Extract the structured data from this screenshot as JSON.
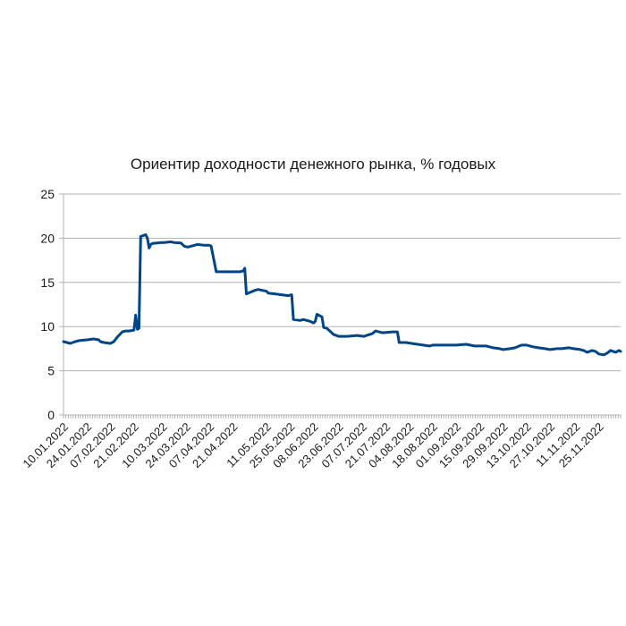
{
  "chart_data": {
    "type": "line",
    "title": "Ориентир доходности денежного рынка, % годовых",
    "xlabel": "",
    "ylabel": "",
    "ylim": [
      0,
      25
    ],
    "yticks": [
      "0",
      "5",
      "10",
      "15",
      "20",
      "25"
    ],
    "grid": "horizontal",
    "legend": "none",
    "line_color": "#004586",
    "x_tick_labels": [
      "10.01.2022",
      "24.01.2022",
      "07.02.2022",
      "21.02.2022",
      "10.03.2022",
      "24.03.2022",
      "07.04.2022",
      "21.04.2022",
      "11.05.2022",
      "25.05.2022",
      "08.06.2022",
      "23.06.2022",
      "07.07.2022",
      "21.07.2022",
      "04.08.2022",
      "18.08.2022",
      "01.09.2022",
      "15.09.2022",
      "29.09.2022",
      "13.10.2022",
      "27.10.2022",
      "11.11.2022",
      "25.11.2022"
    ],
    "points": [
      [
        "10.01.2022",
        8.3
      ],
      [
        "12.01.2022",
        8.2
      ],
      [
        "14.01.2022",
        8.1
      ],
      [
        "17.01.2022",
        8.3
      ],
      [
        "19.01.2022",
        8.4
      ],
      [
        "21.01.2022",
        8.45
      ],
      [
        "24.01.2022",
        8.5
      ],
      [
        "26.01.2022",
        8.55
      ],
      [
        "28.01.2022",
        8.6
      ],
      [
        "31.01.2022",
        8.5
      ],
      [
        "01.02.2022",
        8.3
      ],
      [
        "03.02.2022",
        8.2
      ],
      [
        "07.02.2022",
        8.1
      ],
      [
        "09.02.2022",
        8.3
      ],
      [
        "11.02.2022",
        8.8
      ],
      [
        "14.02.2022",
        9.4
      ],
      [
        "16.02.2022",
        9.5
      ],
      [
        "18.02.2022",
        9.5
      ],
      [
        "21.02.2022",
        9.6
      ],
      [
        "22.02.2022",
        11.3
      ],
      [
        "23.02.2022",
        9.7
      ],
      [
        "24.02.2022",
        9.8
      ],
      [
        "25.02.2022",
        20.2
      ],
      [
        "28.02.2022",
        20.4
      ],
      [
        "01.03.2022",
        20.0
      ],
      [
        "02.03.2022",
        18.9
      ],
      [
        "03.03.2022",
        19.3
      ],
      [
        "04.03.2022",
        19.4
      ],
      [
        "09.03.2022",
        19.5
      ],
      [
        "11.03.2022",
        19.5
      ],
      [
        "15.03.2022",
        19.6
      ],
      [
        "17.03.2022",
        19.5
      ],
      [
        "21.03.2022",
        19.45
      ],
      [
        "23.03.2022",
        19.1
      ],
      [
        "25.03.2022",
        19.0
      ],
      [
        "29.03.2022",
        19.2
      ],
      [
        "31.03.2022",
        19.3
      ],
      [
        "04.04.2022",
        19.2
      ],
      [
        "07.04.2022",
        19.2
      ],
      [
        "08.04.2022",
        19.1
      ],
      [
        "11.04.2022",
        16.2
      ],
      [
        "15.04.2022",
        16.2
      ],
      [
        "20.04.2022",
        16.2
      ],
      [
        "25.04.2022",
        16.2
      ],
      [
        "27.04.2022",
        16.3
      ],
      [
        "28.04.2022",
        16.6
      ],
      [
        "29.04.2022",
        13.7
      ],
      [
        "04.05.2022",
        14.1
      ],
      [
        "06.05.2022",
        14.2
      ],
      [
        "11.05.2022",
        14.0
      ],
      [
        "12.05.2022",
        13.8
      ],
      [
        "16.05.2022",
        13.7
      ],
      [
        "20.05.2022",
        13.6
      ],
      [
        "24.05.2022",
        13.5
      ],
      [
        "26.05.2022",
        13.6
      ],
      [
        "27.05.2022",
        10.8
      ],
      [
        "31.05.2022",
        10.7
      ],
      [
        "02.06.2022",
        10.8
      ],
      [
        "06.06.2022",
        10.6
      ],
      [
        "08.06.2022",
        10.4
      ],
      [
        "09.06.2022",
        10.6
      ],
      [
        "10.06.2022",
        11.4
      ],
      [
        "13.06.2022",
        11.1
      ],
      [
        "14.06.2022",
        9.9
      ],
      [
        "16.06.2022",
        9.8
      ],
      [
        "20.06.2022",
        9.1
      ],
      [
        "23.06.2022",
        8.9
      ],
      [
        "28.06.2022",
        8.9
      ],
      [
        "04.07.2022",
        9.0
      ],
      [
        "08.07.2022",
        8.9
      ],
      [
        "13.07.2022",
        9.2
      ],
      [
        "15.07.2022",
        9.5
      ],
      [
        "19.07.2022",
        9.3
      ],
      [
        "25.07.2022",
        9.4
      ],
      [
        "28.07.2022",
        9.4
      ],
      [
        "29.07.2022",
        8.2
      ],
      [
        "02.08.2022",
        8.2
      ],
      [
        "09.08.2022",
        8.0
      ],
      [
        "16.08.2022",
        7.8
      ],
      [
        "18.08.2022",
        7.9
      ],
      [
        "01.09.2022",
        7.9
      ],
      [
        "07.09.2022",
        8.0
      ],
      [
        "12.09.2022",
        7.8
      ],
      [
        "19.09.2022",
        7.8
      ],
      [
        "23.09.2022",
        7.6
      ],
      [
        "27.09.2022",
        7.5
      ],
      [
        "29.09.2022",
        7.4
      ],
      [
        "03.10.2022",
        7.5
      ],
      [
        "06.10.2022",
        7.6
      ],
      [
        "10.10.2022",
        7.9
      ],
      [
        "13.10.2022",
        7.9
      ],
      [
        "17.10.2022",
        7.7
      ],
      [
        "20.10.2022",
        7.6
      ],
      [
        "24.10.2022",
        7.5
      ],
      [
        "27.10.2022",
        7.4
      ],
      [
        "31.10.2022",
        7.5
      ],
      [
        "03.11.2022",
        7.5
      ],
      [
        "07.11.2022",
        7.6
      ],
      [
        "10.11.2022",
        7.5
      ],
      [
        "14.11.2022",
        7.4
      ],
      [
        "16.11.2022",
        7.3
      ],
      [
        "18.11.2022",
        7.1
      ],
      [
        "21.11.2022",
        7.3
      ],
      [
        "23.11.2022",
        7.2
      ],
      [
        "25.11.2022",
        6.9
      ],
      [
        "28.11.2022",
        6.8
      ],
      [
        "30.11.2022",
        7.0
      ],
      [
        "02.12.2022",
        7.3
      ],
      [
        "05.12.2022",
        7.1
      ],
      [
        "07.12.2022",
        7.3
      ],
      [
        "08.12.2022",
        7.2
      ]
    ]
  }
}
